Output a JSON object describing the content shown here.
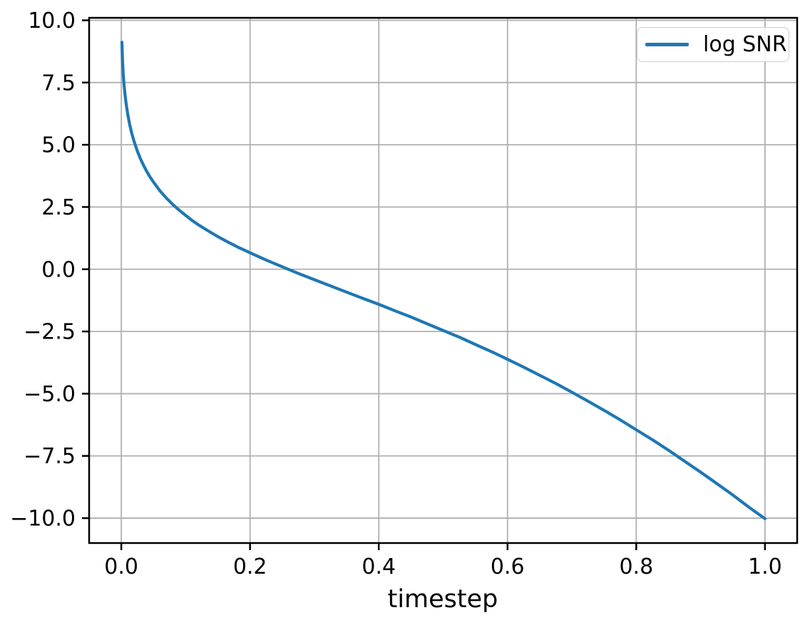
{
  "chart_data": {
    "type": "line",
    "title": "",
    "xlabel": "timestep",
    "ylabel": "",
    "grid": true,
    "legend_position": "upper right",
    "xlim": [
      -0.05,
      1.05
    ],
    "ylim": [
      -11.0,
      10.1
    ],
    "x_ticks": [
      0.0,
      0.2,
      0.4,
      0.6,
      0.8,
      1.0
    ],
    "x_tick_labels": [
      "0.0",
      "0.2",
      "0.4",
      "0.6",
      "0.8",
      "1.0"
    ],
    "y_ticks": [
      10.0,
      7.5,
      5.0,
      2.5,
      0.0,
      -2.5,
      -5.0,
      -7.5,
      -10.0
    ],
    "y_tick_labels": [
      "10.0",
      "7.5",
      "5.0",
      "2.5",
      "0.0",
      "−2.5",
      "−5.0",
      "−7.5",
      "−10.0"
    ],
    "series": [
      {
        "name": "log SNR",
        "color": "#1f77b4",
        "x": [
          0.001,
          0.0015,
          0.002,
          0.0025,
          0.003,
          0.0035,
          0.004,
          0.005,
          0.006,
          0.007,
          0.008,
          0.01,
          0.013,
          0.016,
          0.02,
          0.025,
          0.03,
          0.035,
          0.04,
          0.045,
          0.05,
          0.06,
          0.07,
          0.08,
          0.09,
          0.1,
          0.11,
          0.12,
          0.135,
          0.15,
          0.165,
          0.18,
          0.2,
          0.225,
          0.25,
          0.275,
          0.3,
          0.325,
          0.35,
          0.375,
          0.4,
          0.425,
          0.45,
          0.475,
          0.5,
          0.525,
          0.55,
          0.575,
          0.6,
          0.625,
          0.65,
          0.675,
          0.7,
          0.725,
          0.75,
          0.775,
          0.8,
          0.825,
          0.85,
          0.875,
          0.9,
          0.925,
          0.95,
          0.975,
          1.0
        ],
        "y": [
          9.12,
          8.67,
          8.34,
          8.07,
          7.85,
          7.66,
          7.49,
          7.2,
          6.95,
          6.74,
          6.55,
          6.22,
          5.81,
          5.48,
          5.12,
          4.74,
          4.42,
          4.15,
          3.91,
          3.69,
          3.5,
          3.15,
          2.86,
          2.6,
          2.37,
          2.16,
          1.96,
          1.78,
          1.54,
          1.31,
          1.1,
          0.9,
          0.66,
          0.37,
          0.1,
          -0.17,
          -0.42,
          -0.67,
          -0.92,
          -1.17,
          -1.41,
          -1.67,
          -1.92,
          -2.19,
          -2.46,
          -2.73,
          -3.02,
          -3.31,
          -3.62,
          -3.93,
          -4.26,
          -4.59,
          -4.94,
          -5.3,
          -5.67,
          -6.05,
          -6.45,
          -6.85,
          -7.27,
          -7.71,
          -8.15,
          -8.61,
          -9.07,
          -9.56,
          -10.02
        ]
      }
    ]
  },
  "legend": {
    "entries": [
      {
        "label": "log SNR",
        "color": "#1f77b4"
      }
    ]
  },
  "colors": {
    "line": "#1f77b4",
    "grid": "#b0b0b0",
    "spine": "#000000",
    "text": "#000000",
    "background": "#ffffff",
    "legend_border": "#cccccc"
  }
}
